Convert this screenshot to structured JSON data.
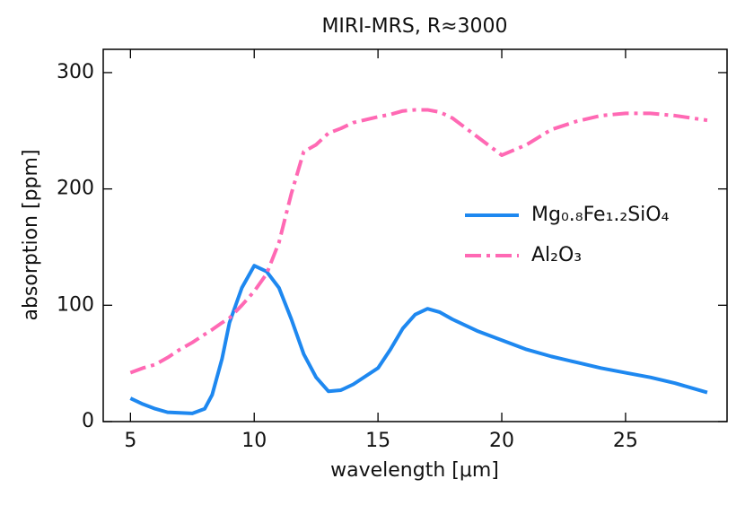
{
  "chart_data": {
    "type": "line",
    "title": "MIRI-MRS, R≈3000",
    "xlabel": "wavelength [μm]",
    "ylabel": "absorption [ppm]",
    "x": [
      5,
      5.5,
      6,
      6.5,
      7,
      7.5,
      8,
      8.3,
      8.7,
      9,
      9.5,
      10,
      10.5,
      11,
      11.5,
      12,
      12.5,
      13,
      13.5,
      14,
      15,
      15.5,
      16,
      16.5,
      17,
      17.5,
      18,
      19,
      20,
      21,
      22,
      23,
      24,
      25,
      26,
      27,
      28.3
    ],
    "series": [
      {
        "name": "Mg₀.₈Fe₁.₂SiO₄",
        "color": "#1e88f0",
        "dash": "solid",
        "values": [
          20,
          15,
          11,
          8,
          7.5,
          7,
          11,
          23,
          54,
          85,
          115,
          134,
          129,
          115,
          88,
          58,
          38,
          26,
          27,
          32,
          46,
          62,
          80,
          92,
          97,
          94,
          88,
          78,
          70,
          62,
          56,
          51,
          46,
          42,
          38,
          33,
          25
        ]
      },
      {
        "name": "Al₂O₃",
        "color": "#ff69b4",
        "dash": "dashdot",
        "values": [
          42,
          46,
          49,
          55,
          62,
          68,
          75,
          79,
          85,
          89,
          100,
          112,
          127,
          154,
          196,
          232,
          238,
          248,
          252,
          257,
          262,
          264,
          267,
          268,
          268,
          266,
          261,
          245,
          229,
          238,
          251,
          258,
          263,
          265,
          265,
          263,
          259
        ]
      }
    ],
    "xlim": [
      3.9,
      29.1
    ],
    "ylim": [
      0,
      320
    ],
    "xticks": [
      5,
      10,
      15,
      20,
      25
    ],
    "yticks": [
      0,
      100,
      200,
      300
    ],
    "legend": "right"
  }
}
